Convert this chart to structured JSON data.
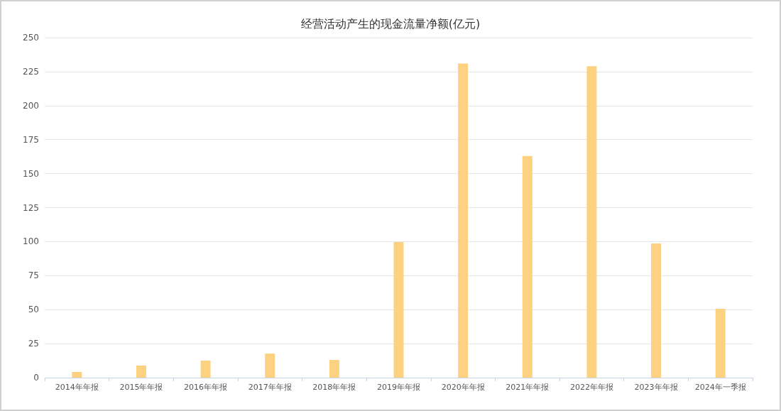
{
  "chart_data": {
    "type": "bar",
    "title": "经营活动产生的现金流量净额(亿元)",
    "categories": [
      "2014年年报",
      "2015年年报",
      "2016年年报",
      "2017年年报",
      "2018年年报",
      "2019年年报",
      "2020年年报",
      "2021年年报",
      "2022年年报",
      "2023年年报",
      "2024年一季报"
    ],
    "values": [
      4.2,
      8.9,
      12.5,
      17.7,
      13,
      99.7,
      231,
      163,
      229,
      98.6,
      50.6
    ],
    "color": "#fcd281",
    "ylim": [
      0,
      250
    ],
    "yticks": [
      0,
      25,
      50,
      75,
      100,
      125,
      150,
      175,
      200,
      225,
      250
    ],
    "grid": "y"
  }
}
